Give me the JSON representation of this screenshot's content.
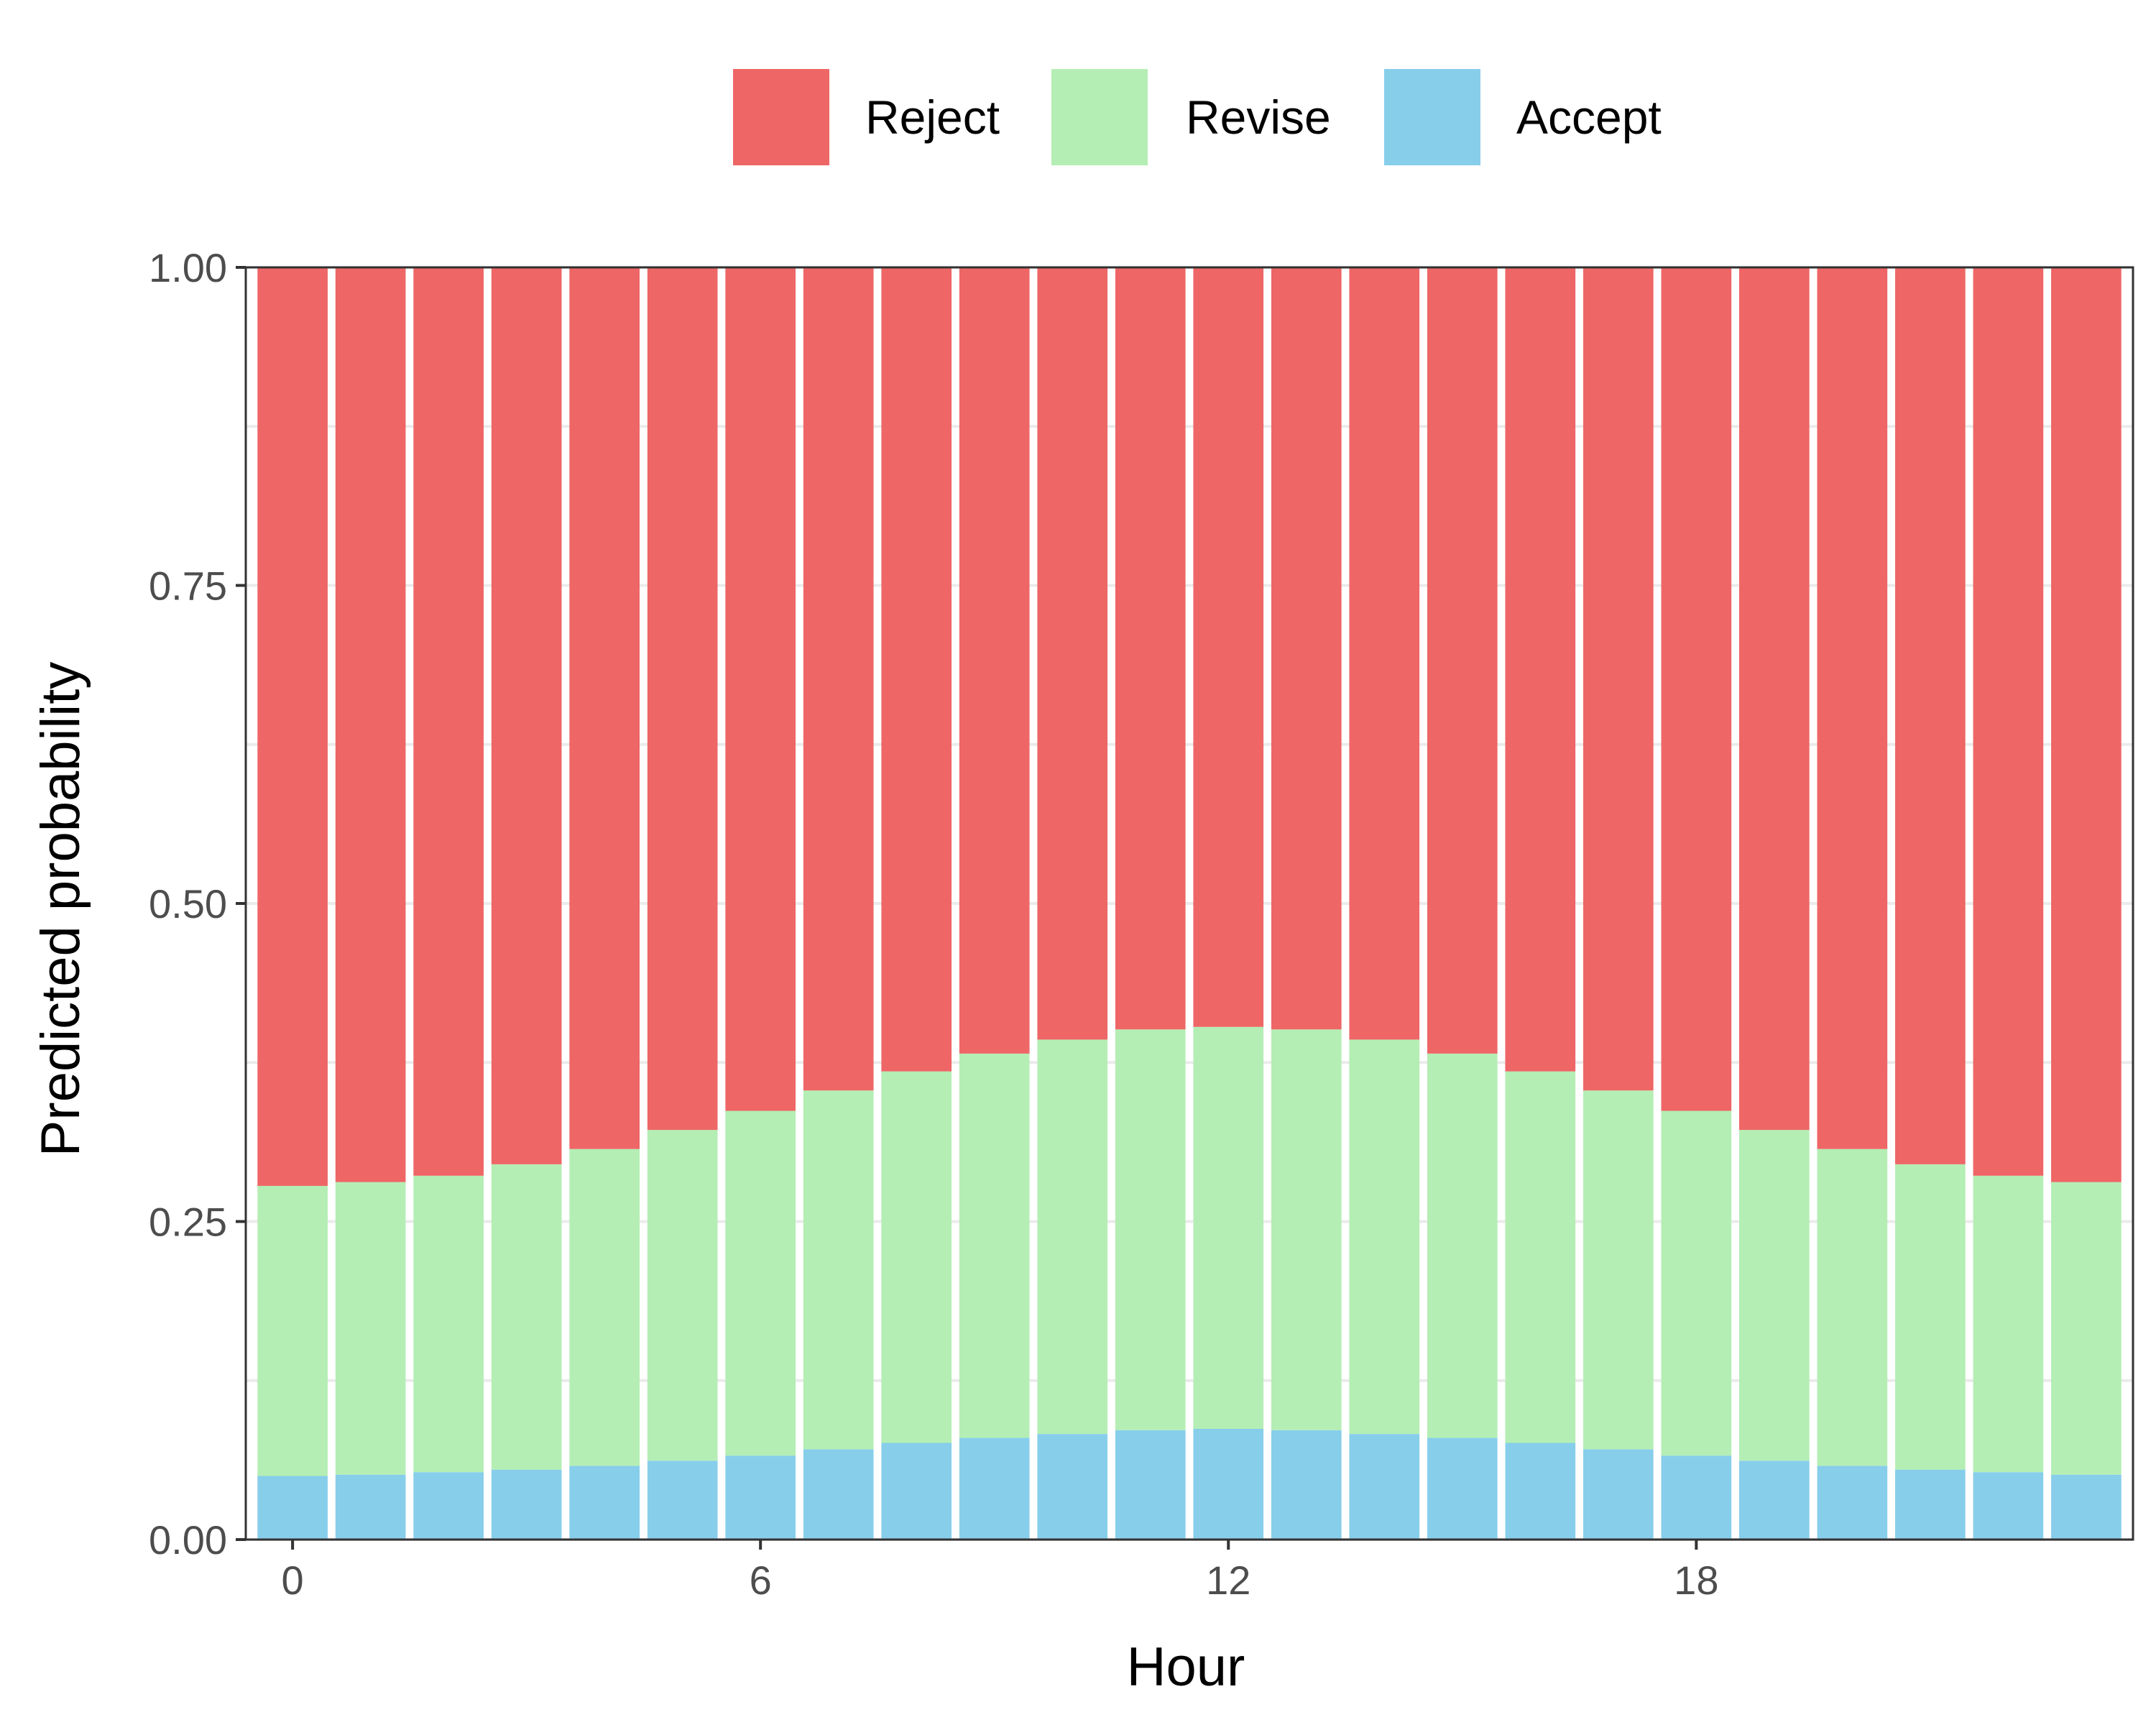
{
  "chart_data": {
    "type": "bar",
    "stacked": true,
    "xlabel": "Hour",
    "ylabel": "Predicted probability",
    "ylim": [
      0,
      1
    ],
    "xlim": [
      -0.6,
      23.6
    ],
    "yticks": [
      0,
      0.25,
      0.5,
      0.75,
      1
    ],
    "ytick_labels": [
      "0.00",
      "0.25",
      "0.50",
      "0.75",
      "1.00"
    ],
    "xticks": [
      0,
      6,
      12,
      18
    ],
    "xtick_labels": [
      "0",
      "6",
      "12",
      "18"
    ],
    "x": [
      0,
      1,
      2,
      3,
      4,
      5,
      6,
      7,
      8,
      9,
      10,
      11,
      12,
      13,
      14,
      15,
      16,
      17,
      18,
      19,
      20,
      21,
      22,
      23
    ],
    "legend_position": "top",
    "grid": true,
    "series": [
      {
        "name": "Accept",
        "color": "#87CEEB",
        "values": [
          0.05,
          0.051,
          0.053,
          0.055,
          0.058,
          0.062,
          0.066,
          0.071,
          0.076,
          0.08,
          0.083,
          0.086,
          0.087,
          0.086,
          0.083,
          0.08,
          0.076,
          0.071,
          0.066,
          0.062,
          0.058,
          0.055,
          0.053,
          0.051
        ]
      },
      {
        "name": "Revise",
        "color": "#B4EEB4",
        "values": [
          0.228,
          0.23,
          0.233,
          0.24,
          0.249,
          0.26,
          0.271,
          0.282,
          0.292,
          0.302,
          0.31,
          0.315,
          0.316,
          0.315,
          0.31,
          0.302,
          0.292,
          0.282,
          0.271,
          0.26,
          0.249,
          0.24,
          0.233,
          0.23
        ]
      },
      {
        "name": "Reject",
        "color": "#EE6666",
        "values": [
          0.722,
          0.719,
          0.714,
          0.705,
          0.693,
          0.678,
          0.663,
          0.647,
          0.632,
          0.618,
          0.607,
          0.599,
          0.597,
          0.599,
          0.607,
          0.618,
          0.632,
          0.647,
          0.663,
          0.678,
          0.693,
          0.705,
          0.714,
          0.719
        ]
      }
    ],
    "legend_order": [
      "Reject",
      "Revise",
      "Accept"
    ]
  }
}
